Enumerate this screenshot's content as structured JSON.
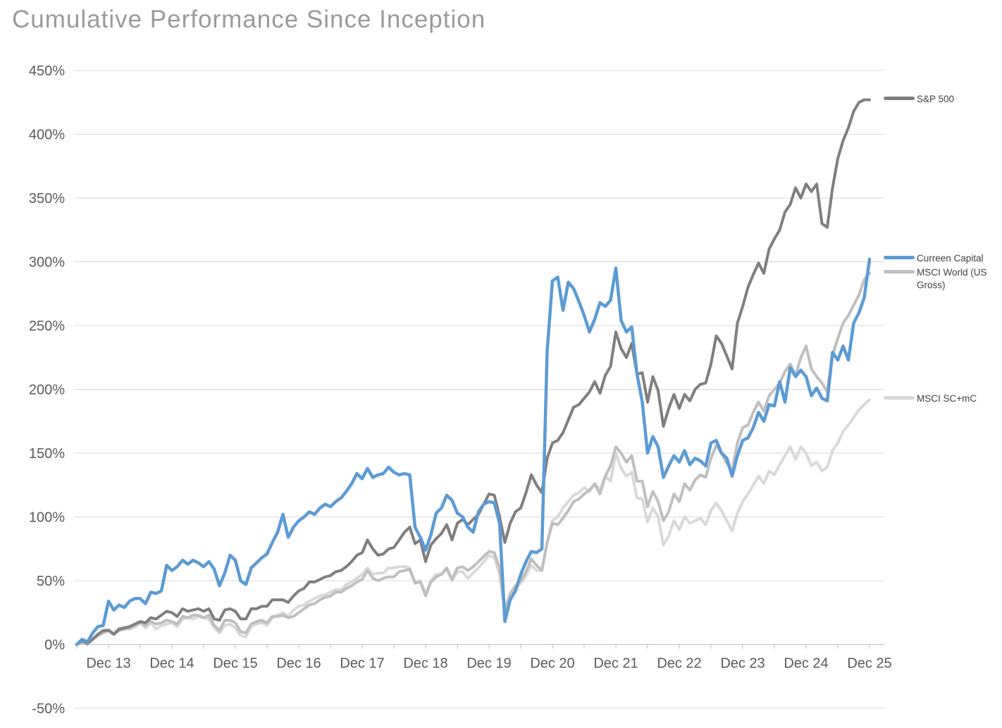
{
  "title": "Cumulative Performance Since Inception",
  "chart_data": {
    "type": "line",
    "title": "Cumulative Performance Since Inception",
    "x_unit": "monthly observations",
    "x_start": "2013-06",
    "x_end": "2025-12",
    "x_tick_labels": [
      "Dec 13",
      "Dec 14",
      "Dec 15",
      "Dec 16",
      "Dec 17",
      "Dec 18",
      "Dec 19",
      "Dec 20",
      "Dec 21",
      "Dec 22",
      "Dec 23",
      "Dec 24",
      "Dec 25"
    ],
    "y_tick_labels": [
      "450%",
      "400%",
      "350%",
      "300%",
      "250%",
      "200%",
      "150%",
      "100%",
      "50%",
      "0%",
      "-50%"
    ],
    "y_tick_values": [
      450,
      400,
      350,
      300,
      250,
      200,
      150,
      100,
      50,
      0,
      -50
    ],
    "ylim": [
      -50,
      450
    ],
    "y_unit": "%",
    "grid": "horizontal-only",
    "legend_position": "right-at-line-ends",
    "background": "#ffffff",
    "series": [
      {
        "name": "S&P 500",
        "color": "#7f7f7f",
        "stroke_width": 4,
        "z_order": 2,
        "values": [
          0,
          3,
          1,
          4,
          8,
          11,
          11,
          8,
          12,
          13,
          14,
          16,
          18,
          17,
          21,
          20,
          23,
          26,
          25,
          22,
          28,
          26,
          27,
          28,
          26,
          28,
          20,
          19,
          27,
          28,
          26,
          20,
          20,
          28,
          28,
          30,
          30,
          35,
          35,
          35,
          33,
          38,
          42,
          44,
          49,
          49,
          51,
          53,
          54,
          57,
          58,
          61,
          65,
          70,
          72,
          82,
          75,
          70,
          71,
          75,
          76,
          82,
          88,
          92,
          79,
          82,
          65,
          78,
          83,
          87,
          94,
          82,
          95,
          98,
          94,
          98,
          102,
          110,
          118,
          117,
          100,
          80,
          95,
          104,
          107,
          119,
          133,
          125,
          119,
          146,
          158,
          160,
          166,
          176,
          186,
          188,
          193,
          198,
          206,
          197,
          211,
          218,
          245,
          232,
          225,
          236,
          212,
          213,
          190,
          210,
          199,
          171,
          185,
          196,
          185,
          196,
          191,
          200,
          204,
          205,
          220,
          242,
          236,
          226,
          216,
          252,
          265,
          280,
          290,
          299,
          291,
          310,
          318,
          325,
          339,
          345,
          358,
          350,
          361,
          355,
          361,
          330,
          327,
          358,
          381,
          395,
          405,
          418,
          425,
          427,
          427
        ]
      },
      {
        "name": "Curreen Capital",
        "color": "#5b9bd5",
        "stroke_width": 4.5,
        "z_order": 3,
        "values": [
          0,
          4,
          2,
          9,
          14,
          15,
          34,
          27,
          31,
          29,
          34,
          36,
          36,
          32,
          41,
          40,
          42,
          62,
          58,
          61,
          66,
          63,
          66,
          64,
          61,
          65,
          59,
          46,
          56,
          70,
          66,
          50,
          47,
          60,
          64,
          68,
          71,
          80,
          88,
          102,
          84,
          92,
          97,
          100,
          104,
          102,
          107,
          110,
          108,
          112,
          115,
          120,
          126,
          134,
          130,
          138,
          131,
          133,
          134,
          139,
          135,
          133,
          134,
          133,
          92,
          84,
          74,
          86,
          103,
          107,
          117,
          113,
          103,
          100,
          92,
          88,
          104,
          110,
          112,
          111,
          95,
          18,
          35,
          42,
          55,
          65,
          73,
          72,
          75,
          230,
          285,
          288,
          262,
          284,
          279,
          269,
          258,
          245,
          255,
          268,
          265,
          270,
          295,
          254,
          245,
          249,
          212,
          190,
          150,
          163,
          155,
          131,
          140,
          148,
          143,
          152,
          141,
          146,
          144,
          140,
          158,
          160,
          150,
          146,
          132,
          148,
          160,
          162,
          170,
          182,
          175,
          188,
          187,
          206,
          190,
          217,
          210,
          215,
          210,
          195,
          201,
          193,
          191,
          229,
          223,
          234,
          223,
          252,
          260,
          272,
          302
        ]
      },
      {
        "name": "MSCI World (US Gross)",
        "color": "#bfbfbf",
        "stroke_width": 4,
        "z_order": 1,
        "values": [
          0,
          2,
          0,
          4,
          7,
          9,
          11,
          8,
          11,
          12,
          13,
          15,
          17,
          15,
          18,
          16,
          17,
          19,
          18,
          16,
          22,
          21,
          23,
          23,
          21,
          23,
          15,
          11,
          19,
          19,
          17,
          10,
          9,
          16,
          18,
          19,
          17,
          22,
          22,
          23,
          21,
          22,
          25,
          28,
          31,
          32,
          35,
          37,
          38,
          41,
          41,
          44,
          46,
          49,
          51,
          58,
          52,
          50,
          52,
          53,
          53,
          57,
          58,
          59,
          48,
          49,
          38,
          49,
          53,
          55,
          60,
          51,
          60,
          61,
          58,
          61,
          65,
          69,
          73,
          72,
          60,
          27,
          40,
          46,
          50,
          57,
          67,
          62,
          58,
          80,
          95,
          94,
          99,
          105,
          112,
          114,
          118,
          121,
          126,
          118,
          132,
          140,
          155,
          150,
          143,
          148,
          128,
          128,
          108,
          120,
          112,
          97,
          104,
          118,
          112,
          126,
          121,
          129,
          133,
          131,
          146,
          156,
          150,
          142,
          136,
          158,
          170,
          172,
          182,
          190,
          183,
          195,
          200,
          205,
          214,
          220,
          211,
          225,
          234,
          216,
          210,
          205,
          198,
          227,
          240,
          252,
          258,
          266,
          274,
          286,
          291
        ]
      },
      {
        "name": "MSCI SC+mC",
        "color": "#d9d9d9",
        "stroke_width": 4,
        "z_order": 0,
        "values": [
          0,
          2,
          0,
          5,
          8,
          10,
          12,
          9,
          13,
          13,
          12,
          14,
          17,
          13,
          17,
          12,
          15,
          16,
          17,
          14,
          20,
          21,
          20,
          22,
          21,
          20,
          13,
          9,
          15,
          16,
          13,
          7,
          6,
          14,
          16,
          17,
          15,
          21,
          23,
          25,
          22,
          27,
          30,
          31,
          34,
          36,
          38,
          39,
          41,
          43,
          43,
          47,
          49,
          52,
          55,
          60,
          55,
          56,
          56,
          60,
          60,
          61,
          61,
          60,
          49,
          50,
          40,
          50,
          55,
          55,
          59,
          50,
          57,
          57,
          52,
          56,
          60,
          65,
          70,
          68,
          55,
          24,
          38,
          44,
          48,
          54,
          62,
          58,
          58,
          80,
          97,
          100,
          107,
          112,
          117,
          119,
          123,
          120,
          126,
          121,
          132,
          128,
          150,
          138,
          132,
          135,
          115,
          114,
          96,
          107,
          100,
          78,
          85,
          97,
          90,
          100,
          95,
          97,
          99,
          94,
          105,
          111,
          105,
          97,
          89,
          103,
          112,
          118,
          125,
          132,
          126,
          136,
          133,
          141,
          148,
          155,
          145,
          155,
          150,
          140,
          143,
          136,
          139,
          152,
          158,
          167,
          172,
          178,
          184,
          188,
          192
        ]
      }
    ]
  },
  "colors": {
    "title_text": "#9a9a9a",
    "axis_text": "#595959",
    "legend_text": "#404040",
    "gridline": "#d9d9d9",
    "axis_line": "#bfbfbf",
    "background": "#ffffff"
  }
}
